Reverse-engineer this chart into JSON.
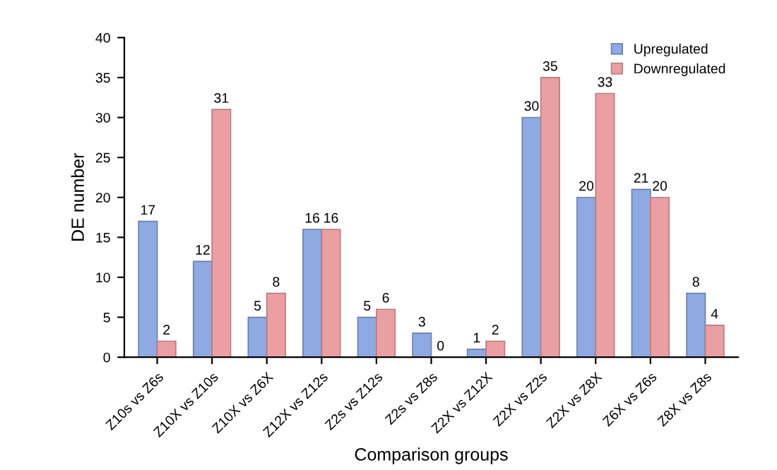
{
  "chart_data": {
    "type": "bar",
    "xlabel": "Comparison groups",
    "ylabel": "DE number",
    "categories": [
      "Z10s vs Z6s",
      "Z10X vs Z10s",
      "Z10X vs Z6X",
      "Z12X vs Z12s",
      "Z2s vs Z12s",
      "Z2s vs Z8s",
      "Z2X vs Z12X",
      "Z2X vs Z2s",
      "Z2X vs Z8X",
      "Z6X vs Z6s",
      "Z8X vs Z8s"
    ],
    "series": [
      {
        "name": "Upregulated",
        "color": "#8faae3",
        "values": [
          17,
          12,
          5,
          16,
          5,
          3,
          1,
          30,
          20,
          21,
          8
        ]
      },
      {
        "name": "Downregulated",
        "color": "#eb9fa3",
        "values": [
          2,
          31,
          8,
          16,
          6,
          0,
          2,
          35,
          33,
          20,
          4
        ]
      }
    ],
    "ylim": [
      0,
      40
    ],
    "yticks": [
      0,
      5,
      10,
      15,
      20,
      25,
      30,
      35,
      40
    ],
    "grid": false,
    "legend": "top right",
    "data_labels": true
  }
}
